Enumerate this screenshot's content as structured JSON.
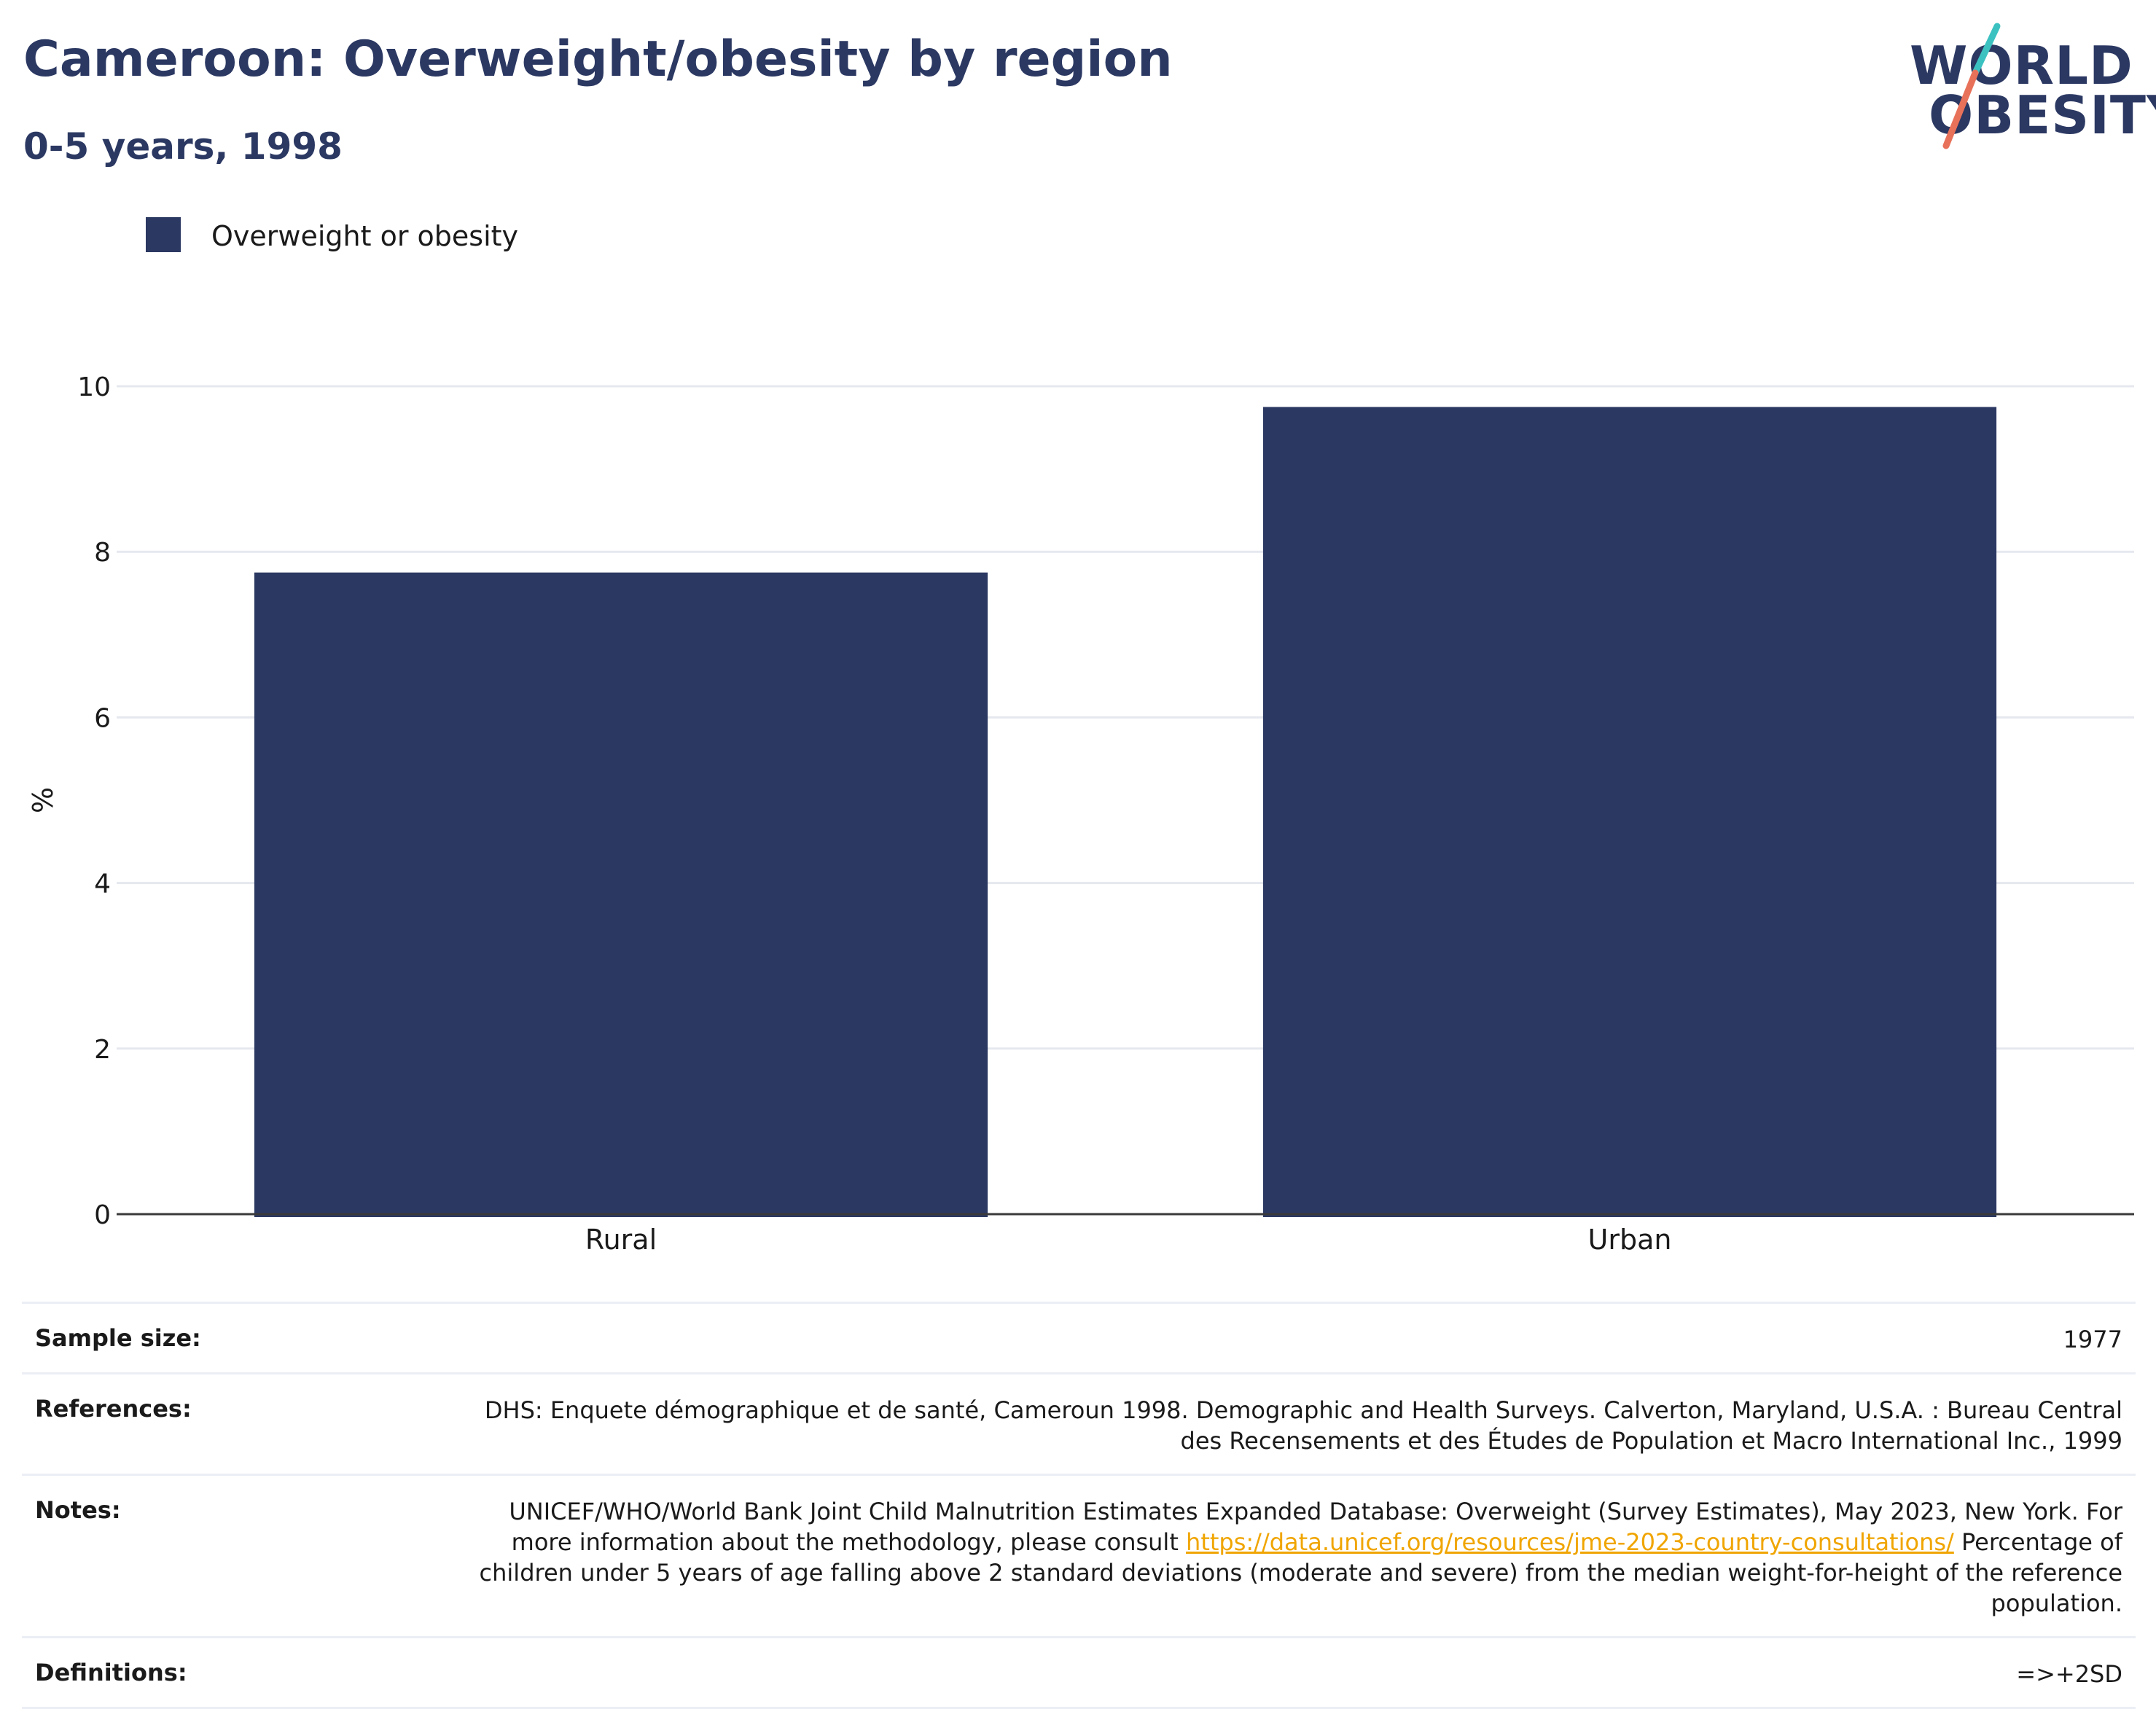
{
  "header": {
    "title": "Cameroon: Overweight/obesity by region",
    "subtitle": "0-5 years, 1998"
  },
  "logo": {
    "line1": "WORLD",
    "line2": "OBESITY",
    "colors": {
      "navy": "#2b3862",
      "teal": "#3cc1c1",
      "coral": "#e8715a"
    }
  },
  "legend": {
    "items": [
      {
        "label": "Overweight or obesity",
        "color": "#2b3862"
      }
    ]
  },
  "chart_data": {
    "type": "bar",
    "title": "Cameroon: Overweight/obesity by region",
    "subtitle": "0-5 years, 1998",
    "categories": [
      "Rural",
      "Urban"
    ],
    "series": [
      {
        "name": "Overweight or obesity",
        "values": [
          7.75,
          9.75
        ],
        "color": "#2b3862"
      }
    ],
    "xlabel": "",
    "ylabel": "%",
    "ylim": [
      0,
      10
    ],
    "yticks": [
      "0",
      "2",
      "4",
      "6",
      "8",
      "10"
    ],
    "grid": true,
    "legend_position": "top-left"
  },
  "info": {
    "rows": [
      {
        "label": "Sample size:",
        "value": "1977"
      },
      {
        "label": "References:",
        "value": "DHS: Enquete démographique et de santé, Cameroun 1998. Demographic and Health Surveys. Calverton, Maryland, U.S.A. : Bureau Central des Recensements et des Études de Population et Macro International Inc., 1999"
      },
      {
        "label": "Notes:",
        "value_before": "UNICEF/WHO/World Bank Joint Child Malnutrition Estimates Expanded Database: Overweight (Survey Estimates), May 2023, New York. For more information about the methodology, please consult ",
        "link": "https://data.unicef.org/resources/jme-2023-country-consultations/",
        "value_after": " Percentage of children under 5 years of age falling above 2 standard deviations (moderate and severe) from the median weight-for-height of the reference population."
      },
      {
        "label": "Definitions:",
        "value": "=>+2SD"
      }
    ],
    "link_color": "#f0a500"
  }
}
